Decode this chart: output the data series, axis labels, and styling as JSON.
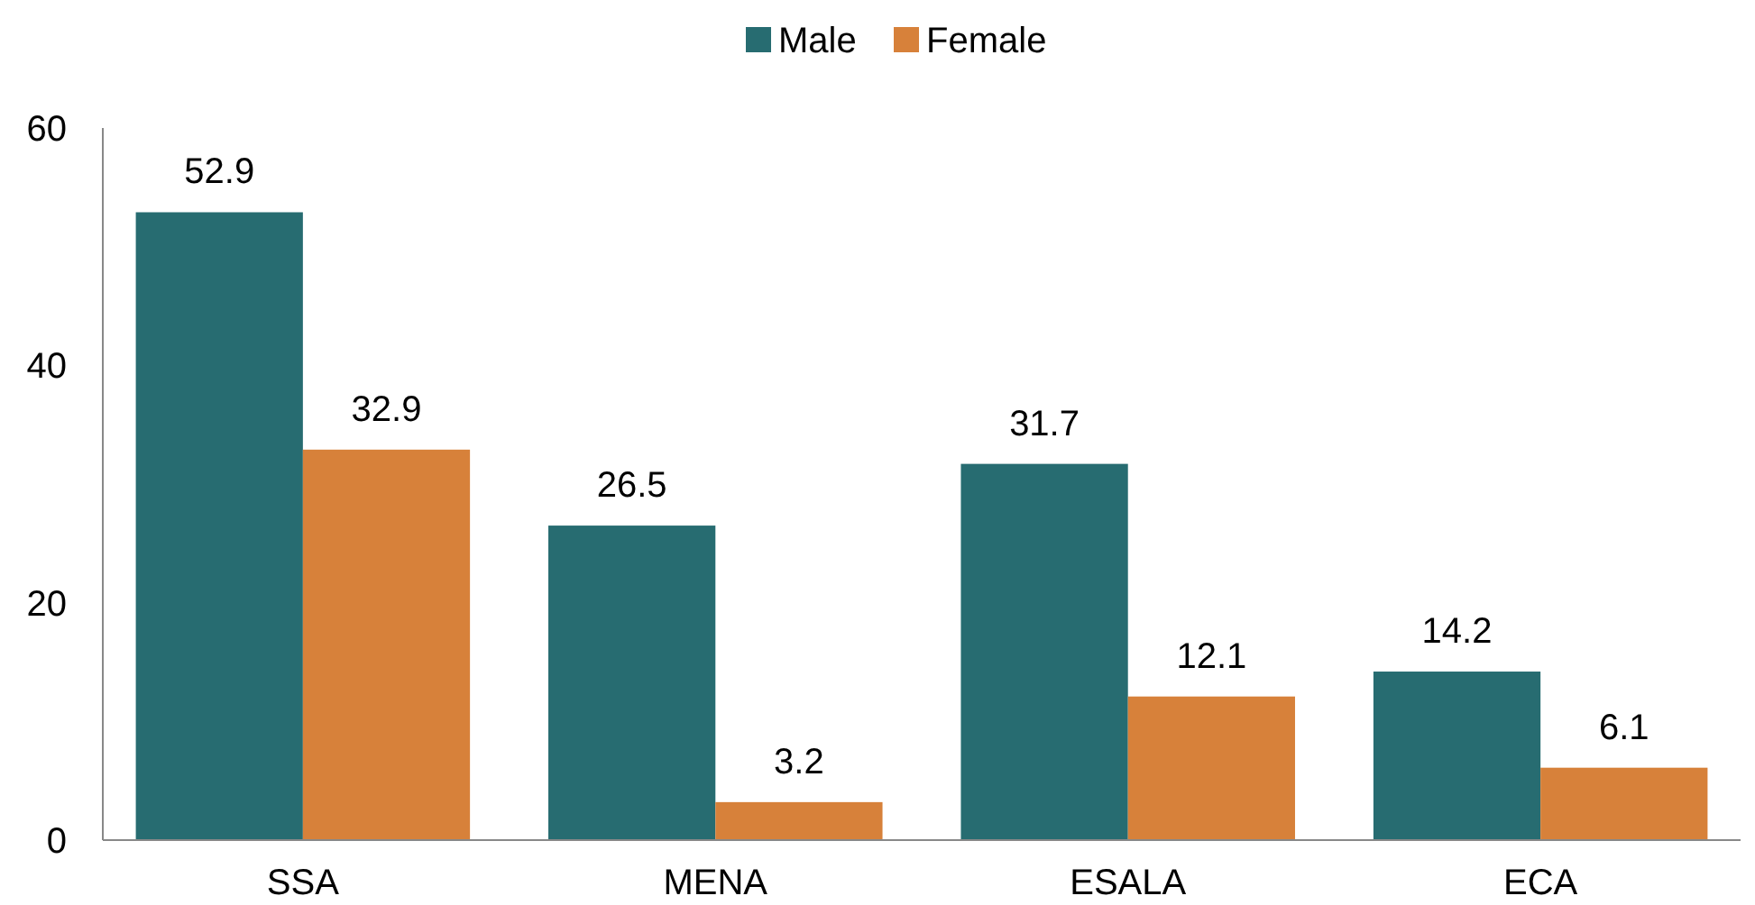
{
  "chart_data": {
    "type": "bar",
    "categories": [
      "SSA",
      "MENA",
      "ESALA",
      "ECA"
    ],
    "series": [
      {
        "name": "Male",
        "color": "#276c71",
        "values": [
          52.9,
          26.5,
          31.7,
          14.2
        ]
      },
      {
        "name": "Female",
        "color": "#d7813a",
        "values": [
          32.9,
          3.2,
          12.1,
          6.1
        ]
      }
    ],
    "ylim": [
      0,
      60
    ],
    "yticks": [
      0,
      20,
      40,
      60
    ],
    "grid": false,
    "legend": "top",
    "data_labels": true
  }
}
